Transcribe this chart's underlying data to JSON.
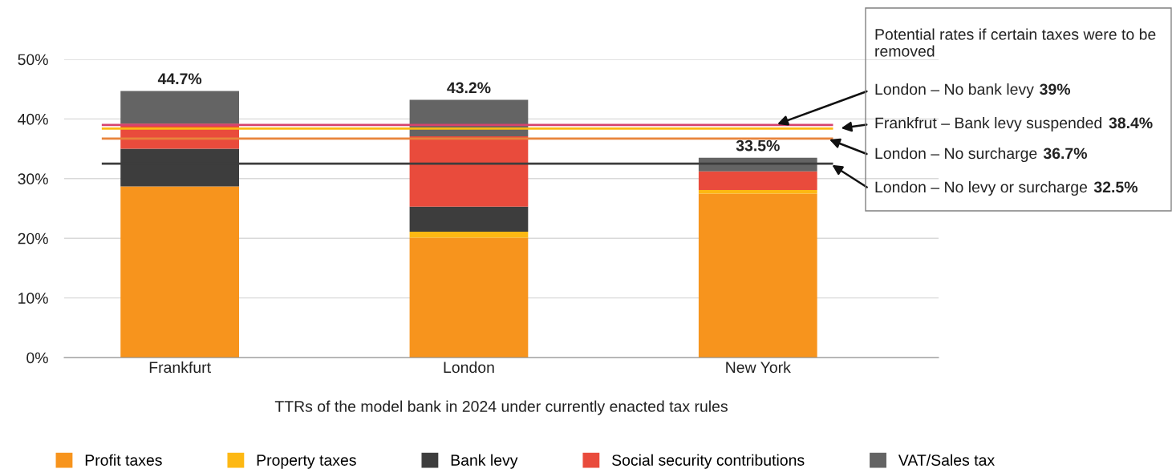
{
  "chart_data": {
    "type": "bar",
    "stacked": true,
    "xlabel": "TTRs of the model bank in 2024 under currently enacted tax rules",
    "categories": [
      "Frankfurt",
      "London",
      "New York"
    ],
    "series": [
      {
        "name": "Profit taxes",
        "color": "#f7941d",
        "values": [
          28.7,
          20.1,
          27.5
        ]
      },
      {
        "name": "Property taxes",
        "color": "#fdb813",
        "values": [
          0,
          1.0,
          0.6
        ]
      },
      {
        "name": "Bank levy",
        "color": "#3d3d3d",
        "values": [
          6.3,
          4.2,
          0
        ]
      },
      {
        "name": "Social security contributions",
        "color": "#e94b3c",
        "values": [
          4.2,
          11.8,
          3.1
        ]
      },
      {
        "name": "VAT/Sales tax",
        "color": "#646464",
        "values": [
          5.5,
          6.1,
          2.3
        ]
      }
    ],
    "totals": [
      "44.7%",
      "43.2%",
      "33.5%"
    ],
    "ylim": [
      0,
      50
    ],
    "yticks": [
      {
        "value": 0,
        "label": "0%"
      },
      {
        "value": 10,
        "label": "10%"
      },
      {
        "value": 20,
        "label": "20%"
      },
      {
        "value": 30,
        "label": "30%"
      },
      {
        "value": 40,
        "label": "40%"
      },
      {
        "value": 50,
        "label": "50%"
      }
    ],
    "grid": "y",
    "legend": "bottom",
    "ref_lines": [
      {
        "axis": "y",
        "value": 39,
        "label": "London – No bank levy 39%",
        "color": "#d6436e"
      },
      {
        "axis": "y",
        "value": 38.4,
        "label": "Frankfrut – Bank levy suspended 38.4%",
        "color": "#fdb813"
      },
      {
        "axis": "y",
        "value": 36.7,
        "label": "London – No surcharge 36.7%",
        "color": "#e8843c"
      },
      {
        "axis": "y",
        "value": 32.5,
        "label": "London – No levy or surcharge 32.5%",
        "color": "#3d3d3d"
      }
    ],
    "annotations": [
      "Potential rates if certain taxes were to be removed"
    ]
  }
}
